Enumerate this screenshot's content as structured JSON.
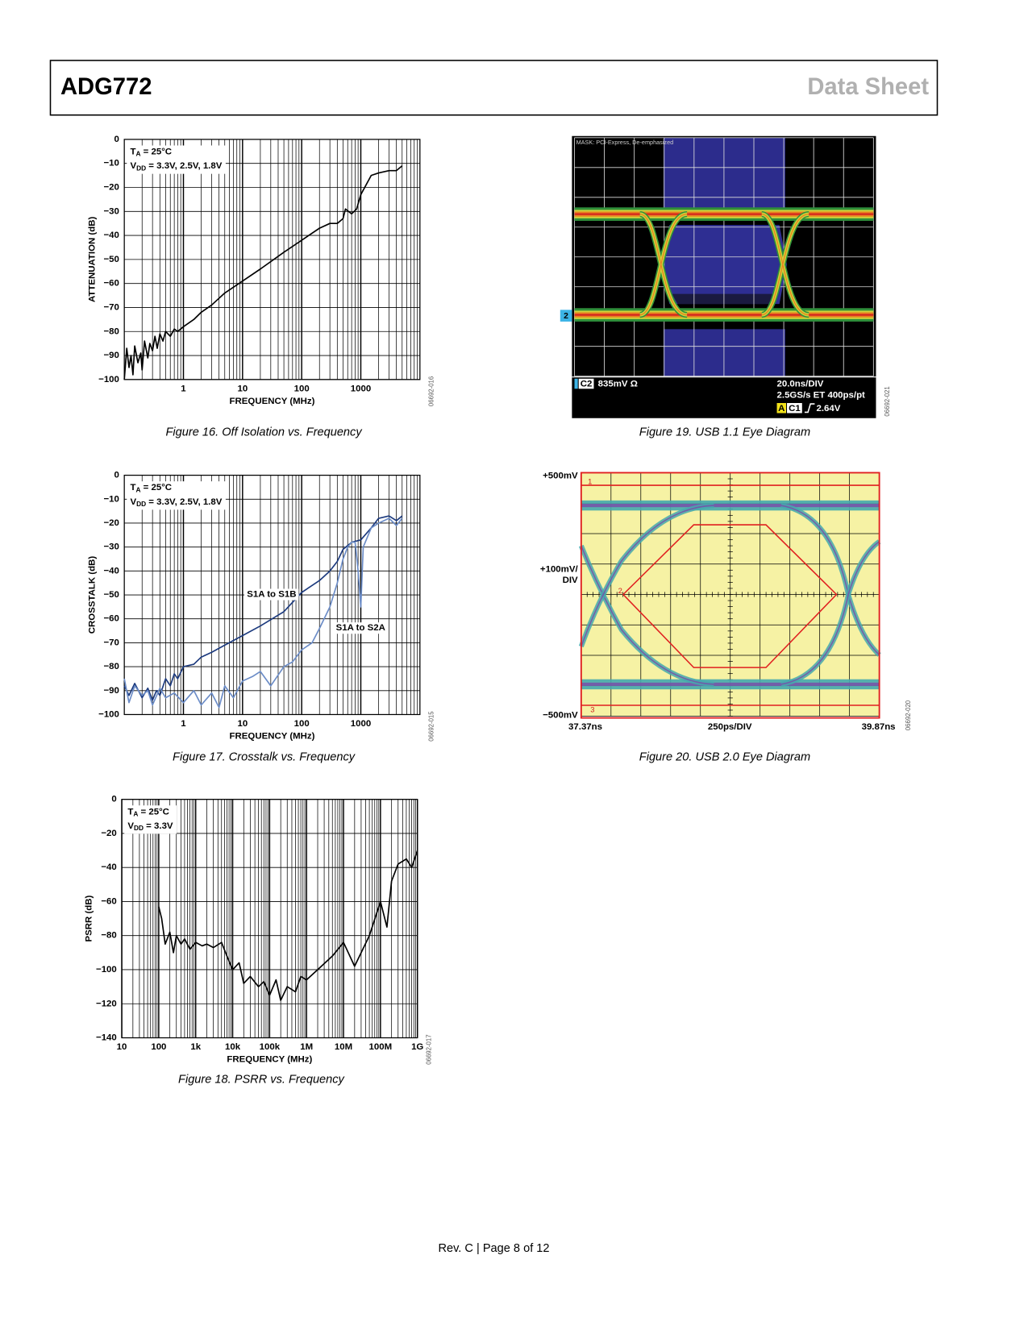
{
  "header": {
    "left": "ADG772",
    "right": "Data Sheet"
  },
  "footer": "Rev. C | Page 8 of 12",
  "chart_data": [
    {
      "type": "line",
      "log_x": true,
      "grid": true,
      "xlabel": "FREQUENCY (MHz)",
      "ylabel": "ATTENUATION (dB)",
      "caption": "Figure 16. Off Isolation vs. Frequency",
      "code": "06692-016",
      "annotations": [
        {
          "main": "T",
          "sub": "A",
          "after": " = 25°C"
        },
        {
          "main": "V",
          "sub": "DD",
          "after": " = 3.3V, 2.5V, 1.8V"
        }
      ],
      "xlim": [
        0.1,
        10000
      ],
      "xticks": [
        1,
        10,
        100,
        1000
      ],
      "ylim": [
        -100,
        0
      ],
      "yticks": [
        0,
        {
          "value": -10,
          "label": "−10"
        },
        {
          "value": -20,
          "label": "−20"
        },
        {
          "value": -30,
          "label": "−30"
        },
        {
          "value": -40,
          "label": "−40"
        },
        {
          "value": -50,
          "label": "−50"
        },
        {
          "value": -60,
          "label": "−60"
        },
        {
          "value": -70,
          "label": "−70"
        },
        {
          "value": -80,
          "label": "−80"
        },
        {
          "value": -90,
          "label": "−90"
        },
        {
          "value": -100,
          "label": "−100"
        }
      ],
      "series": [
        {
          "color": "#000000",
          "x": [
            0.1,
            0.11,
            0.12,
            0.13,
            0.14,
            0.15,
            0.17,
            0.19,
            0.2,
            0.22,
            0.25,
            0.27,
            0.3,
            0.33,
            0.36,
            0.4,
            0.45,
            0.5,
            0.6,
            0.7,
            0.8,
            1,
            1.5,
            2,
            3,
            5,
            10,
            20,
            50,
            100,
            200,
            300,
            400,
            500,
            550,
            700,
            850,
            1000,
            1500,
            2000,
            3000,
            4000,
            5000
          ],
          "values": [
            -100,
            -87,
            -95,
            -90,
            -98,
            -86,
            -93,
            -89,
            -96,
            -84,
            -91,
            -85,
            -88,
            -82,
            -87,
            -81,
            -84,
            -80,
            -82,
            -79,
            -80,
            -78,
            -75,
            -72,
            -69,
            -64,
            -59,
            -54,
            -47,
            -42,
            -37,
            -35,
            -35,
            -33,
            -29,
            -31,
            -29,
            -23,
            -15,
            -14,
            -13,
            -13,
            -11
          ]
        }
      ]
    },
    {
      "type": "line",
      "log_x": true,
      "grid": true,
      "xlabel": "FREQUENCY (MHz)",
      "ylabel": "CROSSTALK (dB)",
      "caption": "Figure 17. Crosstalk vs. Frequency",
      "code": "06692-015",
      "annotations": [
        {
          "main": "T",
          "sub": "A",
          "after": " = 25°C"
        },
        {
          "main": "V",
          "sub": "DD",
          "after": " = 3.3V, 2.5V, 1.8V"
        }
      ],
      "xlim": [
        0.1,
        10000
      ],
      "xticks": [
        1,
        10,
        100,
        1000
      ],
      "ylim": [
        -100,
        0
      ],
      "yticks": [
        0,
        {
          "value": -10,
          "label": "−10"
        },
        {
          "value": -20,
          "label": "−20"
        },
        {
          "value": -30,
          "label": "−30"
        },
        {
          "value": -40,
          "label": "−40"
        },
        {
          "value": -50,
          "label": "−50"
        },
        {
          "value": -60,
          "label": "−60"
        },
        {
          "value": -70,
          "label": "−70"
        },
        {
          "value": -80,
          "label": "−80"
        },
        {
          "value": -90,
          "label": "−90"
        },
        {
          "value": -100,
          "label": "−100"
        }
      ],
      "series": [
        {
          "name": "S1A to S1B",
          "color": "#1c3a7e",
          "x": [
            0.1,
            0.12,
            0.15,
            0.2,
            0.25,
            0.3,
            0.35,
            0.4,
            0.5,
            0.6,
            0.7,
            0.8,
            1,
            1.5,
            2,
            3,
            5,
            10,
            20,
            50,
            100,
            200,
            300,
            400,
            500,
            700,
            1000,
            1500,
            2000,
            3000,
            4000,
            5000
          ],
          "values": [
            -88,
            -92,
            -87,
            -93,
            -89,
            -94,
            -90,
            -92,
            -85,
            -88,
            -83,
            -85,
            -80,
            -79,
            -76,
            -74,
            -71,
            -67,
            -63,
            -57,
            -49,
            -44,
            -40,
            -36,
            -31,
            -28,
            -27,
            -22,
            -18,
            -17,
            -19,
            -17
          ]
        },
        {
          "name": "S1A to S2A",
          "color": "#6b8cc7",
          "x": [
            0.1,
            0.12,
            0.15,
            0.2,
            0.25,
            0.3,
            0.4,
            0.5,
            0.7,
            1,
            1.5,
            2,
            3,
            4,
            5,
            7,
            10,
            15,
            20,
            30,
            50,
            70,
            100,
            150,
            200,
            300,
            400,
            500,
            600,
            700,
            800,
            900,
            1000,
            1100,
            1500,
            2000,
            3000,
            4000,
            5000
          ],
          "values": [
            -85,
            -95,
            -88,
            -92,
            -90,
            -96,
            -89,
            -93,
            -91,
            -95,
            -90,
            -96,
            -91,
            -97,
            -88,
            -93,
            -86,
            -84,
            -82,
            -88,
            -80,
            -78,
            -73,
            -70,
            -64,
            -55,
            -45,
            -35,
            -30,
            -28,
            -28,
            -40,
            -55,
            -30,
            -22,
            -20,
            -18,
            -21,
            -18
          ]
        }
      ]
    },
    {
      "type": "line",
      "log_x": true,
      "grid": true,
      "xlabel": "FREQUENCY (MHz)",
      "ylabel": "PSRR (dB)",
      "caption": "Figure 18. PSRR vs. Frequency",
      "code": "06692-017",
      "annotations": [
        {
          "main": "T",
          "sub": "A",
          "after": " = 25°C"
        },
        {
          "main": "V",
          "sub": "DD",
          "after": " = 3.3V"
        }
      ],
      "xlim": [
        10,
        1000000000
      ],
      "xticks": [
        10,
        100,
        {
          "value": 1000,
          "label": "1k"
        },
        {
          "value": 10000,
          "label": "10k"
        },
        {
          "value": 100000,
          "label": "100k"
        },
        {
          "value": 1000000,
          "label": "1M"
        },
        {
          "value": 10000000,
          "label": "10M"
        },
        {
          "value": 100000000,
          "label": "100M"
        },
        {
          "value": 1000000000,
          "label": "1G"
        }
      ],
      "ylim": [
        -140,
        0
      ],
      "yticks": [
        0,
        {
          "value": -20,
          "label": "−20"
        },
        {
          "value": -40,
          "label": "−40"
        },
        {
          "value": -60,
          "label": "−60"
        },
        {
          "value": -80,
          "label": "−80"
        },
        {
          "value": -100,
          "label": "−100"
        },
        {
          "value": -120,
          "label": "−120"
        },
        {
          "value": -140,
          "label": "−140"
        }
      ],
      "series": [
        {
          "color": "#000000",
          "x": [
            100,
            120,
            150,
            200,
            250,
            300,
            400,
            500,
            700,
            1000,
            1500,
            2000,
            3000,
            5000,
            7000,
            10000,
            15000,
            20000,
            30000,
            50000,
            70000,
            100000,
            150000,
            200000,
            300000,
            500000,
            700000,
            1000000,
            2000000,
            5000000,
            10000000,
            20000000,
            50000000,
            100000000,
            150000000,
            200000000,
            300000000,
            500000000,
            700000000,
            1000000000
          ],
          "values": [
            -63,
            -70,
            -85,
            -78,
            -90,
            -80,
            -85,
            -82,
            -88,
            -84,
            -86,
            -85,
            -87,
            -84,
            -92,
            -100,
            -96,
            -108,
            -104,
            -110,
            -107,
            -115,
            -106,
            -118,
            -110,
            -113,
            -104,
            -106,
            -100,
            -92,
            -84,
            -98,
            -80,
            -60,
            -75,
            -48,
            -38,
            -35,
            -40,
            -30
          ]
        }
      ]
    }
  ],
  "scopes": [
    {
      "title": "MASK: PCI-Express, De-emphasized",
      "marker": "2",
      "channel": "C2",
      "scale": "835mV Ω",
      "timebase": "20.0ns/DIV",
      "sampling": "2.5GS/s ET 400ps/pt",
      "trigger_mode": "A",
      "trigger_source": "C1",
      "trigger_level": "2.64V",
      "code": "06692-021",
      "caption": "Figure 19. USB 1.1 Eye Diagram"
    },
    {
      "top": "+500mV",
      "scale": [
        "+100mV/",
        "DIV"
      ],
      "bottom": "−500mV",
      "start": "37.37ns",
      "timebase": "250ps/DIV",
      "end": "39.87ns",
      "markers": [
        "1",
        "2",
        "3"
      ],
      "code": "06692-020",
      "caption": "Figure 20. USB 2.0 Eye Diagram"
    }
  ]
}
